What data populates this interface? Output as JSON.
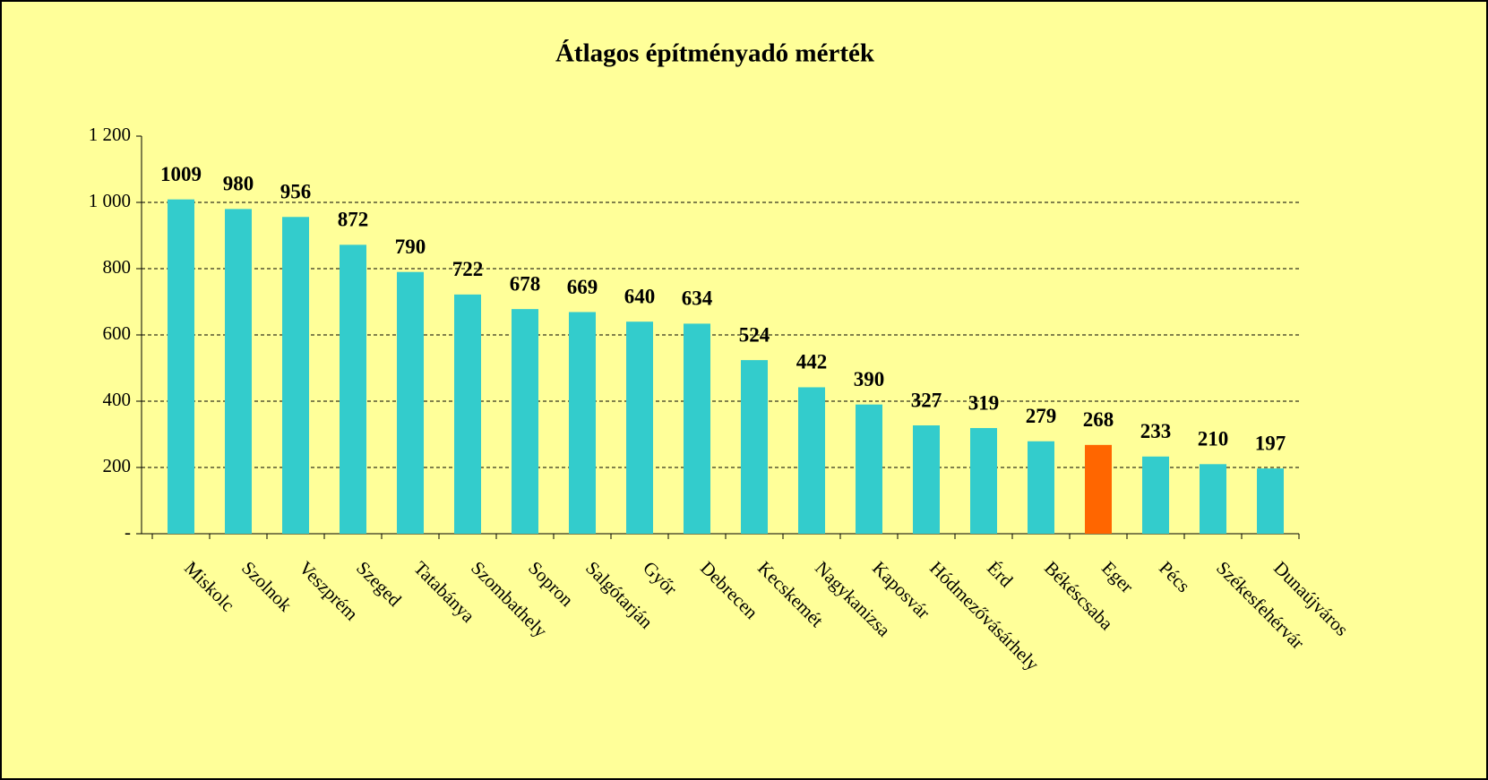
{
  "chart_data": {
    "type": "bar",
    "title": "Átlagos építményadó mérték",
    "categories": [
      "Miskolc",
      "Szolnok",
      "Veszprém",
      "Szeged",
      "Tatabánya",
      "Szombathely",
      "Sopron",
      "Salgótarján",
      "Győr",
      "Debrecen",
      "Kecskemét",
      "Nagykanizsa",
      "Kaposvár",
      "Hódmezővásárhely",
      "Érd",
      "Békéscsaba",
      "Eger",
      "Pécs",
      "Székesfehérvár",
      "Dunaújváros"
    ],
    "values": [
      1009,
      980,
      956,
      872,
      790,
      722,
      678,
      669,
      640,
      634,
      524,
      442,
      390,
      327,
      319,
      279,
      268,
      233,
      210,
      197
    ],
    "colors": [
      "#33CCCC",
      "#33CCCC",
      "#33CCCC",
      "#33CCCC",
      "#33CCCC",
      "#33CCCC",
      "#33CCCC",
      "#33CCCC",
      "#33CCCC",
      "#33CCCC",
      "#33CCCC",
      "#33CCCC",
      "#33CCCC",
      "#33CCCC",
      "#33CCCC",
      "#33CCCC",
      "#FF6600",
      "#33CCCC",
      "#33CCCC",
      "#33CCCC"
    ],
    "ylim": [
      0,
      1200
    ],
    "yticks": [
      {
        "value": 0,
        "label": "-"
      },
      200,
      400,
      600,
      800,
      {
        "value": 1000,
        "label": "1 000"
      },
      {
        "value": 1200,
        "label": "1 200"
      }
    ],
    "grid": true
  }
}
